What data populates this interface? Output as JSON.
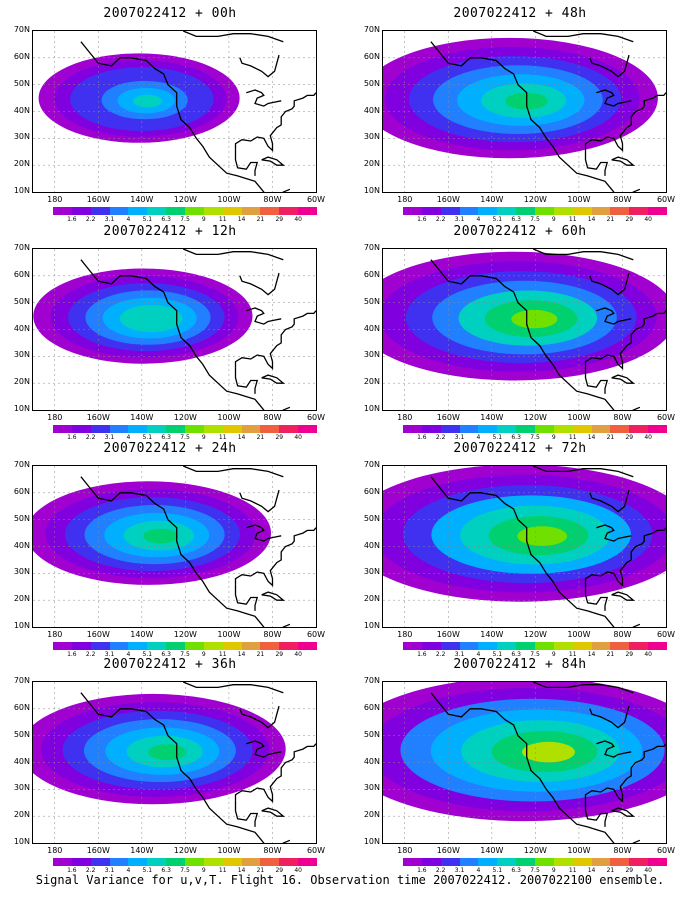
{
  "figure": {
    "caption": "Signal Variance for u,v,T. Flight 16. Observation time 2007022412. 2007022100 ensemble."
  },
  "axes": {
    "lat_labels": [
      "70N",
      "60N",
      "50N",
      "40N",
      "30N",
      "20N",
      "10N"
    ],
    "lon_labels": [
      "180",
      "160W",
      "140W",
      "120W",
      "100W",
      "80W",
      "60W"
    ],
    "lat_range": [
      10,
      70
    ],
    "lon_range": [
      -190,
      -60
    ],
    "grid": true
  },
  "colorbar": {
    "labels": [
      "1.6",
      "2.2",
      "3.1",
      "4",
      "5.1",
      "6.3",
      "7.5",
      "9",
      "11",
      "14",
      "21",
      "29",
      "40"
    ],
    "colors": [
      "#a000d0",
      "#8000e0",
      "#4030f0",
      "#2080ff",
      "#00b0ff",
      "#00d0c0",
      "#00d070",
      "#70e000",
      "#b0e000",
      "#e0c800",
      "#e0a040",
      "#f06040",
      "#f02060",
      "#f00090"
    ]
  },
  "panels": [
    {
      "title": "2007022412 + 00h",
      "forecast_hour": 0,
      "intensity": 0.55,
      "spread": 0.35
    },
    {
      "title": "2007022412 + 12h",
      "forecast_hour": 12,
      "intensity": 0.6,
      "spread": 0.42
    },
    {
      "title": "2007022412 + 24h",
      "forecast_hour": 24,
      "intensity": 0.65,
      "spread": 0.52
    },
    {
      "title": "2007022412 + 36h",
      "forecast_hour": 36,
      "intensity": 0.7,
      "spread": 0.6
    },
    {
      "title": "2007022412 + 48h",
      "forecast_hour": 48,
      "intensity": 0.72,
      "spread": 0.72
    },
    {
      "title": "2007022412 + 60h",
      "forecast_hour": 60,
      "intensity": 0.76,
      "spread": 0.82
    },
    {
      "title": "2007022412 + 72h",
      "forecast_hour": 72,
      "intensity": 0.82,
      "spread": 0.92
    },
    {
      "title": "2007022412 + 84h",
      "forecast_hour": 84,
      "intensity": 0.85,
      "spread": 1.0
    }
  ]
}
